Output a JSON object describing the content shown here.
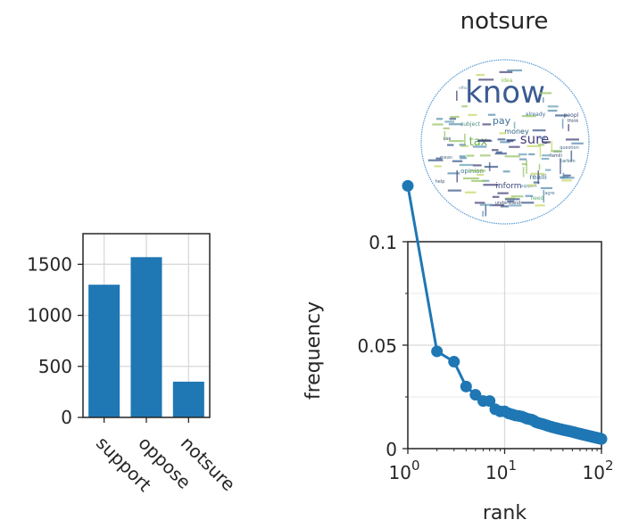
{
  "chart_data": [
    {
      "type": "bar",
      "categories": [
        "support",
        "oppose",
        "notsure"
      ],
      "values": [
        1300,
        1570,
        350
      ],
      "title": "",
      "xlabel": "",
      "ylabel": "",
      "ylim": [
        0,
        1800
      ],
      "yticks": [
        "0",
        "500",
        "1000",
        "1500"
      ],
      "grid": true,
      "bar_color": "#1f77b4",
      "tick_label_rotation": -45
    },
    {
      "type": "line",
      "title": "notsure",
      "xlabel": "rank",
      "ylabel": "frequency",
      "x_scale": "log",
      "xlim": [
        1,
        100
      ],
      "ylim": [
        0,
        0.1
      ],
      "xticks": [
        {
          "base": "10",
          "exp": "0"
        },
        {
          "base": "10",
          "exp": "1"
        },
        {
          "base": "10",
          "exp": "2"
        }
      ],
      "yticks": [
        "0",
        "0.05",
        "0.1"
      ],
      "grid": true,
      "line_color": "#1f77b4",
      "series": [
        {
          "x": [
            1,
            2,
            3,
            4,
            5,
            6,
            7,
            8,
            9,
            10,
            11,
            12,
            13,
            14,
            15,
            16,
            17,
            18,
            19,
            20,
            21,
            22,
            23,
            24,
            25,
            26,
            27,
            28,
            29,
            30,
            31,
            32,
            33,
            34,
            35,
            36,
            37,
            38,
            39,
            40,
            41,
            42,
            43,
            44,
            45,
            46,
            47,
            48,
            49,
            50,
            51,
            52,
            53,
            54,
            55,
            56,
            57,
            58,
            59,
            60,
            61,
            62,
            63,
            64,
            65,
            66,
            67,
            68,
            69,
            70,
            71,
            72,
            73,
            74,
            75,
            76,
            77,
            78,
            79,
            80,
            81,
            82,
            83,
            84,
            85,
            86,
            87,
            88,
            89,
            90,
            91,
            92,
            93,
            94,
            95,
            96,
            97,
            98,
            99,
            100
          ],
          "y": [
            0.127,
            0.047,
            0.042,
            0.03,
            0.026,
            0.023,
            0.023,
            0.019,
            0.018,
            0.018,
            0.017,
            0.0165,
            0.016,
            0.0158,
            0.0155,
            0.015,
            0.0145,
            0.0142,
            0.014,
            0.0135,
            0.0128,
            0.0125,
            0.0122,
            0.012,
            0.0118,
            0.0115,
            0.0113,
            0.011,
            0.0108,
            0.0106,
            0.0104,
            0.0102,
            0.0101,
            0.0099,
            0.0098,
            0.0096,
            0.0095,
            0.0094,
            0.0092,
            0.0091,
            0.009,
            0.0089,
            0.0088,
            0.0087,
            0.0086,
            0.0085,
            0.0084,
            0.0083,
            0.0082,
            0.0081,
            0.008,
            0.0079,
            0.0078,
            0.0077,
            0.0076,
            0.0075,
            0.0074,
            0.0073,
            0.0072,
            0.0072,
            0.0071,
            0.007,
            0.0069,
            0.0068,
            0.0068,
            0.0067,
            0.0066,
            0.0065,
            0.0065,
            0.0064,
            0.0063,
            0.0063,
            0.0062,
            0.0061,
            0.0061,
            0.006,
            0.0059,
            0.0059,
            0.0058,
            0.0057,
            0.0057,
            0.0056,
            0.0056,
            0.0055,
            0.0055,
            0.0054,
            0.0053,
            0.0053,
            0.0052,
            0.0052,
            0.0051,
            0.0051,
            0.005,
            0.005,
            0.0049,
            0.0049,
            0.0048,
            0.0048,
            0.0047,
            0.0047
          ]
        }
      ]
    }
  ],
  "wordcloud": {
    "outline_color": "#5a9bd5",
    "words": [
      {
        "text": "know",
        "color": "#3b5b92"
      },
      {
        "text": "sure",
        "color": "#4a3d7a"
      },
      {
        "text": "tax",
        "color": "#6ab04c"
      },
      {
        "text": "pay",
        "color": "#3f6f9a"
      },
      {
        "text": "money",
        "color": "#2f5f7f"
      },
      {
        "text": "inform",
        "color": "#3d4a7a"
      },
      {
        "text": "opinion",
        "color": "#3a7a8a"
      },
      {
        "text": "realli",
        "color": "#3a6a8a"
      },
      {
        "text": "subject",
        "color": "#4a8a7a"
      },
      {
        "text": "idea",
        "color": "#8abd4a"
      },
      {
        "text": "already",
        "color": "#3a6a9a"
      },
      {
        "text": "need",
        "color": "#5aaa6a"
      },
      {
        "text": "peopl",
        "color": "#3a4a7a"
      },
      {
        "text": "think",
        "color": "#3a4a6a"
      },
      {
        "text": "agre",
        "color": "#4a7a9a"
      },
      {
        "text": "support",
        "color": "#5a8aaa"
      },
      {
        "text": "help",
        "color": "#3a5a7a"
      },
      {
        "text": "understand",
        "color": "#3a4a6a"
      },
      {
        "text": "question",
        "color": "#4a6a8a"
      },
      {
        "text": "famili",
        "color": "#3a4a6a"
      },
      {
        "text": "carbon",
        "color": "#3a6a7a"
      },
      {
        "text": "effect",
        "color": "#5a8a9a"
      },
      {
        "text": "mean",
        "color": "#4a6a8a"
      },
      {
        "text": "use",
        "color": "#2a4a7a"
      }
    ]
  }
}
